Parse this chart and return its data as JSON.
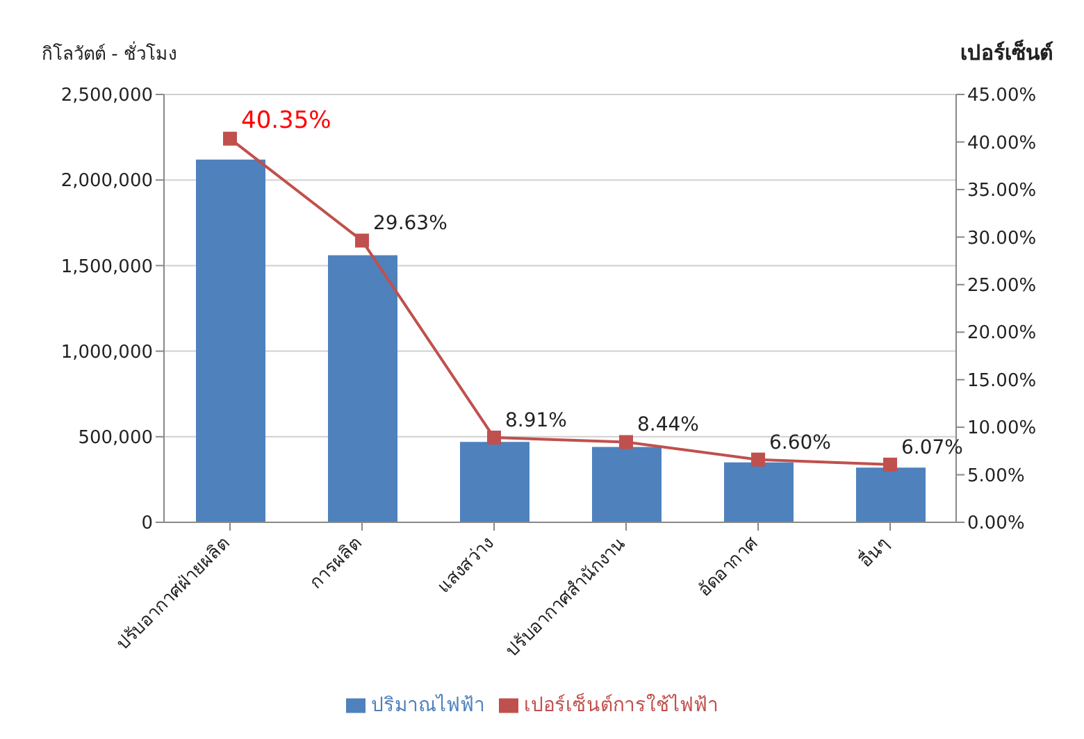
{
  "chart_data": {
    "type": "bar",
    "ylabel": "กิโลวัตต์ - ชั่วโมง",
    "y2label": "เปอร์เซ็นต์",
    "categories": [
      "ปรับอากาศฝ่ายผลิต",
      "การผลิต",
      "แสงสว่าง",
      "ปรับอากาศสำนักงาน",
      "อัดอากาศ",
      "อื่นๆ"
    ],
    "series": [
      {
        "name": "ปริมาณไฟฟ้า",
        "color": "#4f81bd",
        "values": [
          2120000,
          1560000,
          470000,
          440000,
          350000,
          320000
        ]
      },
      {
        "name": "เปอร์เซ็นต์การใช้ไฟฟ้า",
        "type": "line",
        "axis": "y2",
        "color": "#c0504d",
        "marker": "square",
        "values": [
          40.35,
          29.63,
          8.91,
          8.44,
          6.6,
          6.07
        ],
        "value_labels": [
          "40.35%",
          "29.63%",
          "8.91%",
          "8.44%",
          "6.60%",
          "6.07%"
        ]
      }
    ],
    "ylim": [
      0,
      2500000
    ],
    "yticks": [
      0,
      {
        "value": 500000,
        "label": "500,000"
      },
      {
        "value": 1000000,
        "label": "1,000,000"
      },
      {
        "value": 1500000,
        "label": "1,500,000"
      },
      {
        "value": 2000000,
        "label": "2,000,000"
      },
      {
        "value": 2500000,
        "label": "2,500,000"
      }
    ],
    "y2lim": [
      0,
      45
    ],
    "y2ticks": [
      {
        "value": 0,
        "label": "0.00%"
      },
      {
        "value": 5,
        "label": "5.00%"
      },
      {
        "value": 10,
        "label": "10.00%"
      },
      {
        "value": 15,
        "label": "15.00%"
      },
      {
        "value": 20,
        "label": "20.00%"
      },
      {
        "value": 25,
        "label": "25.00%"
      },
      {
        "value": 30,
        "label": "30.00%"
      },
      {
        "value": 35,
        "label": "35.00%"
      },
      {
        "value": 40,
        "label": "40.00%"
      },
      {
        "value": 45,
        "label": "45.00%"
      }
    ],
    "grid": "y",
    "legend": "bottom"
  }
}
